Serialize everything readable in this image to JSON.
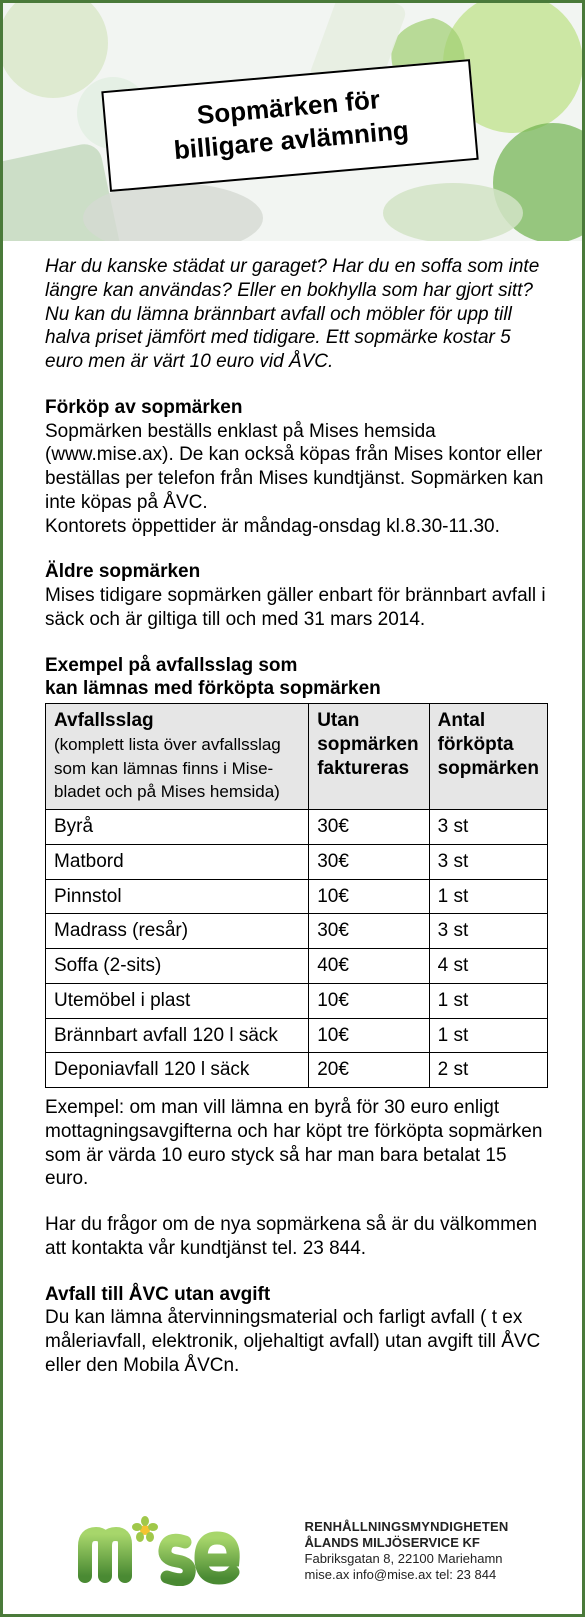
{
  "colors": {
    "border": "#4a7a3a",
    "table_header_bg": "#e6e6e6",
    "table_border": "#000000",
    "title_box_border": "#000000",
    "title_box_bg": "#ffffff",
    "logo_green_light": "#8bbf3f",
    "logo_green_dark": "#3f7a2e",
    "logo_flower_center": "#f4c430",
    "logo_flower_petal": "#a0c84a"
  },
  "title": {
    "line1": "Sopmärken för",
    "line2": "billigare avlämning"
  },
  "intro": "Har du kanske städat ur garaget? Har du en soffa som inte längre kan användas? Eller en bokhylla som har gjort sitt? Nu kan du lämna brännbart avfall och möbler för upp till halva priset jämfört med tidigare. Ett sop­märke kostar 5 euro men är värt 10 euro vid ÅVC.",
  "sections": {
    "forkop": {
      "heading": "Förköp av sopmärken",
      "body": "Sopmärken beställs enklast på Mises hemsida (www.mise.ax). De kan också köpas från Mises kontor eller beställas per telefon från Mises kundtjänst. Sop­märken kan inte köpas på ÅVC.\nKontorets öppettider är måndag-onsdag kl.8.30-11.30."
    },
    "aldre": {
      "heading": "Äldre sopmärken",
      "body": "Mises tidigare sopmärken gäller enbart för brännbart avfall i säck och är giltiga till och med 31 mars 2014."
    },
    "table_title": {
      "line1": "Exempel på avfallsslag som",
      "line2": "kan lämnas med förköpta sopmärken"
    },
    "exempel": "Exempel: om man vill lämna en byrå för 30 euro enligt mottagningsavgifterna och har köpt tre förköpta sop­märken som är värda 10 euro styck så har man bara betalat 15 euro.",
    "fragor": "Har du frågor om de nya sopmärkena så är du välkommen att kontakta vår kundtjänst tel. 23 844.",
    "avc": {
      "heading": "Avfall till ÅVC utan avgift",
      "body": "Du kan lämna återvinningsmaterial och farligt avfall ( t ex måleriavfall, elektronik, oljehaltigt avfall) utan avgift till ÅVC eller den Mobila ÅVCn."
    }
  },
  "table": {
    "columns": [
      {
        "title": "Avfallsslag",
        "sub": "(komplett lista över avfallsslag som kan lämnas finns i Mise­bladet och på Mises hemsida)"
      },
      {
        "title": "Utan sopmärken faktureras",
        "sub": ""
      },
      {
        "title": "Antal förköpta sopmärken",
        "sub": ""
      }
    ],
    "rows": [
      [
        "Byrå",
        "30€",
        "3 st"
      ],
      [
        "Matbord",
        "30€",
        "3 st"
      ],
      [
        "Pinnstol",
        "10€",
        "1 st"
      ],
      [
        "Madrass (resår)",
        "30€",
        "3 st"
      ],
      [
        "Soffa (2-sits)",
        "40€",
        "4 st"
      ],
      [
        "Utemöbel i plast",
        "10€",
        "1 st"
      ],
      [
        "Brännbart avfall 120 l  säck",
        "10€",
        "1 st"
      ],
      [
        "Deponiavfall 120 l säck",
        "20€",
        "2 st"
      ]
    ]
  },
  "footer": {
    "line1": "RENHÅLLNINGSMYNDIGHETEN",
    "line2": "ÅLANDS MILJÖSERVICE KF",
    "line3": "Fabriksgatan 8, 22100 Mariehamn",
    "line4": "mise.ax   info@mise.ax   tel: 23 844"
  }
}
